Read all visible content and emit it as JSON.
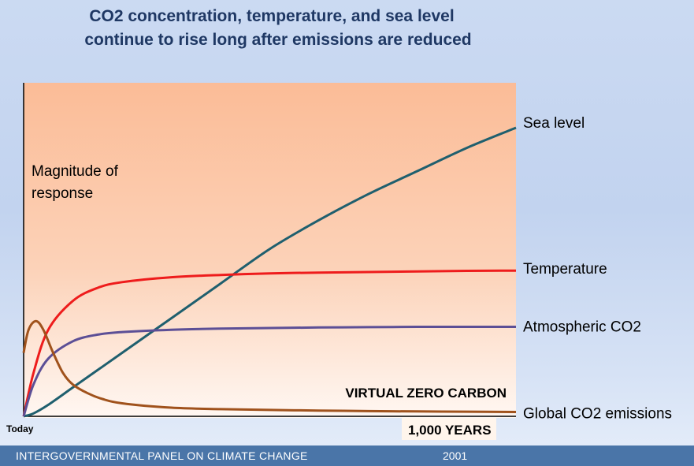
{
  "title": {
    "line1": "CO2 concentration, temperature, and sea level",
    "line2": "continue to rise long after emissions are reduced"
  },
  "footer": {
    "organization": "INTERGOVERNMENTAL  PANEL ON CLIMATE CHANGE",
    "year": "2001"
  },
  "chart_data": {
    "type": "line",
    "title": "CO2 concentration, temperature, and sea level continue to rise long after emissions are reduced",
    "ylabel": "Magnitude of response",
    "xlabel": "1,000 YEARS",
    "x_start_label": "Today",
    "annotation": "VIRTUAL ZERO CARBON",
    "xlim": [
      0,
      1000
    ],
    "ylim": [
      0,
      1
    ],
    "grid": false,
    "series": [
      {
        "name": "Sea level",
        "color": "#1f5f6e",
        "x": [
          0,
          20,
          50,
          100,
          150,
          200,
          300,
          400,
          500,
          600,
          700,
          800,
          900,
          1000
        ],
        "y": [
          0,
          0.01,
          0.04,
          0.1,
          0.16,
          0.22,
          0.34,
          0.46,
          0.58,
          0.68,
          0.77,
          0.85,
          0.93,
          1.0
        ]
      },
      {
        "name": "Temperature",
        "color": "#ee1c1c",
        "x": [
          0,
          20,
          50,
          100,
          150,
          200,
          300,
          400,
          500,
          600,
          700,
          800,
          900,
          1000
        ],
        "y": [
          0,
          0.15,
          0.3,
          0.4,
          0.445,
          0.465,
          0.482,
          0.49,
          0.495,
          0.498,
          0.5,
          0.502,
          0.504,
          0.505
        ]
      },
      {
        "name": "Atmospheric CO2",
        "color": "#5c4f96",
        "x": [
          0,
          20,
          50,
          100,
          150,
          200,
          300,
          400,
          500,
          600,
          700,
          800,
          900,
          1000
        ],
        "y": [
          0,
          0.11,
          0.2,
          0.26,
          0.283,
          0.292,
          0.3,
          0.304,
          0.306,
          0.308,
          0.309,
          0.31,
          0.31,
          0.31
        ]
      },
      {
        "name": "Global CO2 emissions",
        "color": "#a0521c",
        "x": [
          0,
          10,
          25,
          40,
          60,
          80,
          100,
          130,
          160,
          200,
          300,
          400,
          500,
          600,
          700,
          800,
          900,
          1000
        ],
        "y": [
          0.22,
          0.3,
          0.33,
          0.3,
          0.22,
          0.15,
          0.11,
          0.08,
          0.06,
          0.045,
          0.03,
          0.025,
          0.022,
          0.02,
          0.018,
          0.017,
          0.016,
          0.015
        ]
      }
    ]
  }
}
